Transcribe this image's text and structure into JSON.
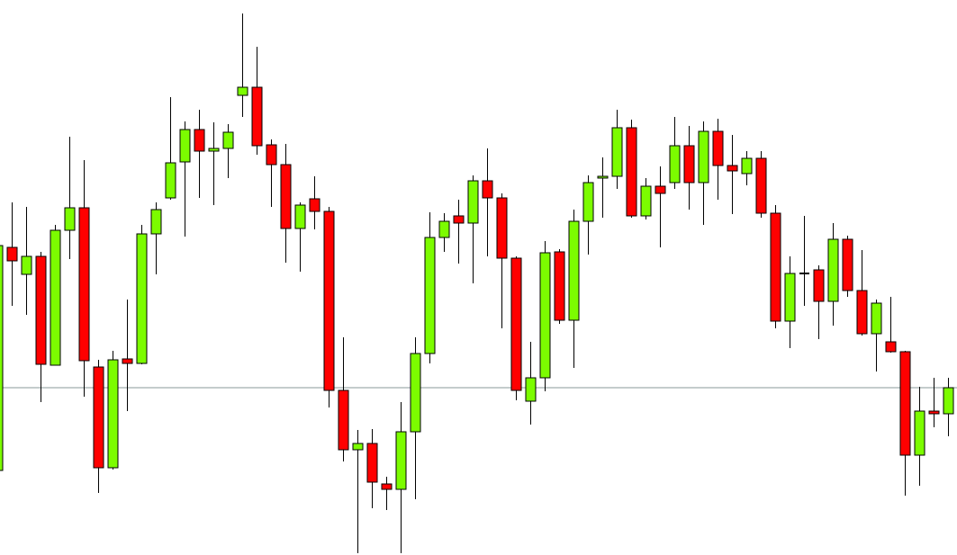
{
  "chart_data": {
    "type": "candlestick",
    "ylim": [
      0,
      617
    ],
    "up_color": "#7cfc00",
    "down_color": "#ff0000",
    "flat_color": "#000000",
    "outline_color": "#000000",
    "reference_line": 186,
    "reference_color": "#8a9a9a",
    "open": [
      94,
      342,
      312,
      332,
      211,
      361,
      386,
      209,
      97,
      218,
      213,
      357,
      397,
      437,
      473,
      449,
      452,
      511,
      520,
      456,
      434,
      363,
      396,
      382,
      183,
      117,
      124,
      79,
      73,
      137,
      224,
      353,
      377,
      369,
      416,
      397,
      330,
      171,
      197,
      337,
      261,
      371,
      419,
      421,
      475,
      377,
      410,
      414,
      455,
      414,
      471,
      433,
      424,
      441,
      380,
      260,
      313,
      317,
      282,
      351,
      294,
      246,
      237,
      226,
      111,
      160,
      157
    ],
    "high": [
      352,
      392,
      387,
      337,
      367,
      465,
      439,
      217,
      227,
      284,
      367,
      392,
      509,
      482,
      495,
      481,
      479,
      602,
      565,
      462,
      457,
      392,
      421,
      387,
      242,
      139,
      140,
      87,
      170,
      242,
      381,
      380,
      395,
      422,
      452,
      402,
      332,
      237,
      349,
      340,
      384,
      422,
      442,
      495,
      484,
      419,
      432,
      487,
      477,
      482,
      485,
      467,
      449,
      449,
      389,
      332,
      377,
      322,
      369,
      355,
      339,
      284,
      287,
      227,
      187,
      197,
      197
    ],
    "low": [
      94,
      277,
      267,
      170,
      211,
      329,
      176,
      69,
      95,
      160,
      212,
      312,
      395,
      354,
      397,
      389,
      419,
      487,
      445,
      387,
      325,
      315,
      362,
      164,
      104,
      2,
      52,
      50,
      2,
      62,
      213,
      337,
      324,
      302,
      332,
      252,
      172,
      145,
      182,
      257,
      208,
      334,
      375,
      407,
      375,
      373,
      342,
      407,
      384,
      367,
      395,
      379,
      411,
      375,
      252,
      230,
      277,
      240,
      255,
      287,
      244,
      204,
      225,
      66,
      77,
      142,
      132
    ],
    "close": [
      344,
      327,
      332,
      212,
      361,
      386,
      216,
      97,
      217,
      213,
      357,
      384,
      436,
      473,
      449,
      452,
      470,
      520,
      455,
      434,
      363,
      389,
      382,
      183,
      117,
      124,
      81,
      73,
      137,
      224,
      353,
      371,
      369,
      416,
      397,
      330,
      183,
      197,
      336,
      261,
      371,
      414,
      421,
      475,
      377,
      410,
      402,
      455,
      414,
      471,
      433,
      427,
      441,
      380,
      260,
      313,
      313,
      282,
      351,
      294,
      246,
      280,
      226,
      111,
      160,
      157,
      186
    ]
  }
}
